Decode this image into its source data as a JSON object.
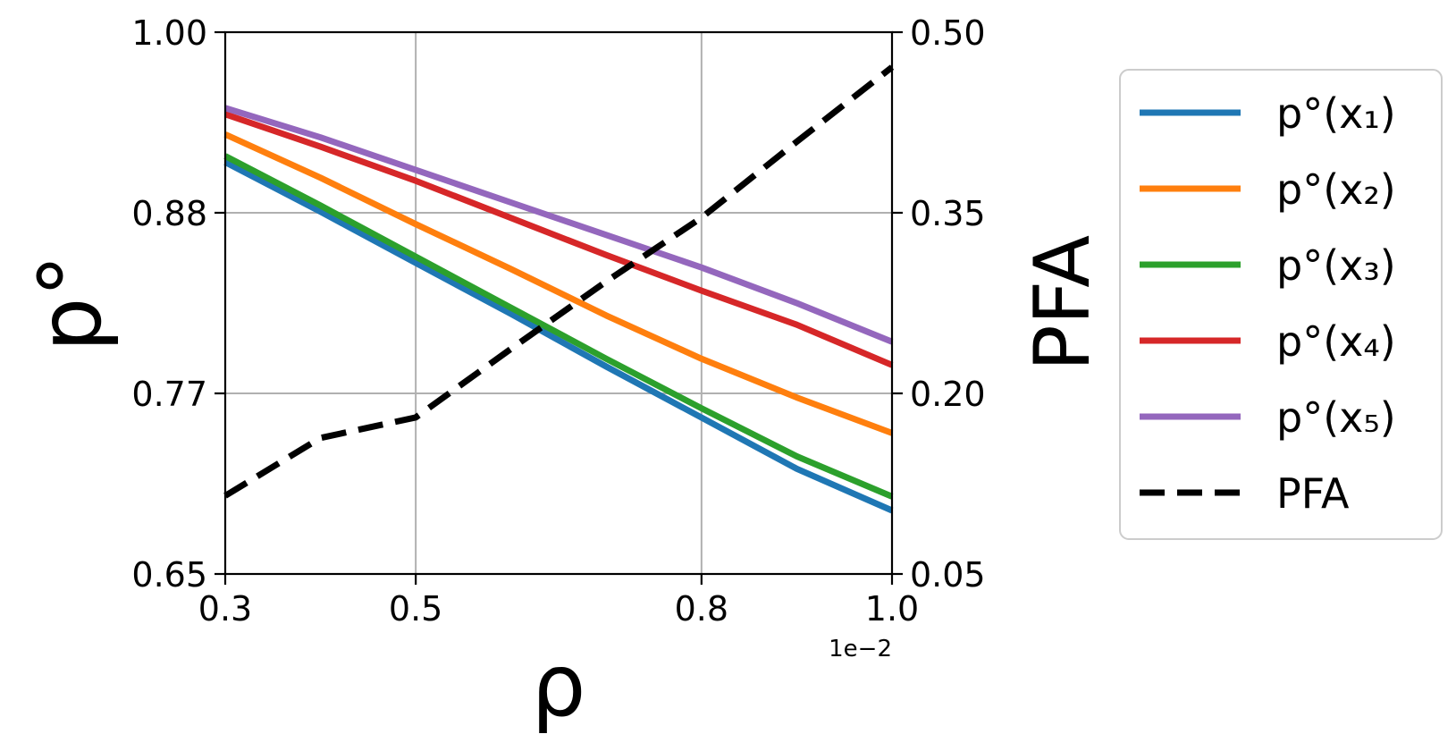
{
  "chart_data": {
    "type": "line",
    "xlabel": "ρ",
    "ylabel": "p°",
    "y2label": "PFA",
    "x_offset_label": "1e−2",
    "xlim": [
      0.3,
      1.0
    ],
    "ylim": [
      0.65,
      1.0
    ],
    "y2lim": [
      0.05,
      0.5
    ],
    "x_ticks": [
      0.3,
      0.5,
      0.8,
      1.0
    ],
    "x_tick_labels": [
      "0.3",
      "0.5",
      "0.8",
      "1.0"
    ],
    "y_ticks": [
      0.65,
      0.766667,
      0.883333,
      1.0
    ],
    "y_tick_labels": [
      "0.65",
      "0.77",
      "0.88",
      "1.00"
    ],
    "y2_ticks": [
      0.05,
      0.2,
      0.35,
      0.5
    ],
    "y2_tick_labels": [
      "0.05",
      "0.20",
      "0.35",
      "0.50"
    ],
    "grid": true,
    "legend_position": "outside-right",
    "x": [
      0.3,
      0.4,
      0.5,
      0.6,
      0.7,
      0.8,
      0.9,
      1.0
    ],
    "series": [
      {
        "name": "p°(x₁)",
        "axis": "left",
        "color": "#1f77b4",
        "values": [
          0.916,
          0.884,
          0.851,
          0.818,
          0.784,
          0.751,
          0.718,
          0.691
        ]
      },
      {
        "name": "p°(x₂)",
        "axis": "left",
        "color": "#ff7f0e",
        "values": [
          0.934,
          0.906,
          0.876,
          0.847,
          0.817,
          0.789,
          0.764,
          0.741
        ]
      },
      {
        "name": "p°(x₃)",
        "axis": "left",
        "color": "#2ca02c",
        "values": [
          0.92,
          0.888,
          0.855,
          0.822,
          0.789,
          0.757,
          0.726,
          0.7
        ]
      },
      {
        "name": "p°(x₄)",
        "axis": "left",
        "color": "#d62728",
        "values": [
          0.947,
          0.926,
          0.904,
          0.88,
          0.856,
          0.833,
          0.811,
          0.785
        ]
      },
      {
        "name": "p°(x₅)",
        "axis": "left",
        "color": "#9467bd",
        "values": [
          0.951,
          0.932,
          0.911,
          0.89,
          0.869,
          0.848,
          0.825,
          0.8
        ]
      },
      {
        "name": "PFA",
        "axis": "right",
        "color": "#000000",
        "dashed": true,
        "values": [
          0.115,
          0.163,
          0.18,
          0.237,
          0.293,
          0.346,
          0.409,
          0.471
        ]
      }
    ]
  }
}
